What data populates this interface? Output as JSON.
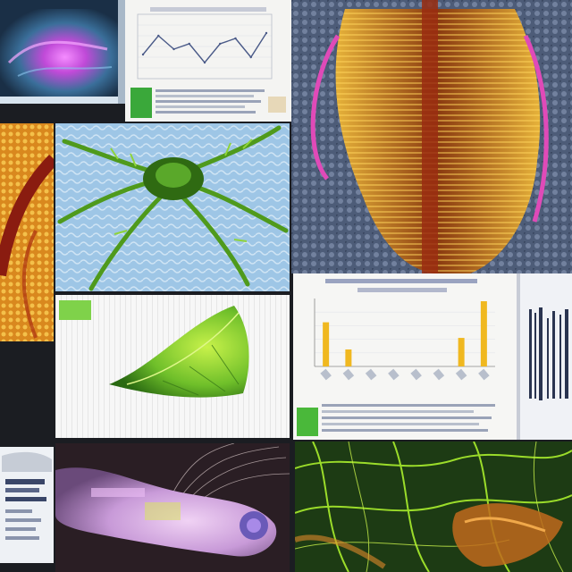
{
  "palette": {
    "blue_scan": "#2f7fb0",
    "magenta_glow": "#d04ad8",
    "gold_fiber": "#e0a62a",
    "deep_red": "#7a1d12",
    "leaf_green": "#6fbf2a",
    "lime": "#9bdc2a",
    "paper": "#f4f4f2",
    "chart_bar": "#f0b820",
    "chart_line": "#4a5a88",
    "lavender": "#c89ad8"
  },
  "tiles": [
    {
      "name": "scan-blue-magenta",
      "kind": "image"
    },
    {
      "name": "line-chart-sheet",
      "kind": "document"
    },
    {
      "name": "gold-fiber-torso",
      "kind": "image"
    },
    {
      "name": "orange-tissue-left",
      "kind": "image"
    },
    {
      "name": "green-sprout-on-blue",
      "kind": "image"
    },
    {
      "name": "green-leaf-on-grid",
      "kind": "image"
    },
    {
      "name": "bar-chart-sheet",
      "kind": "document"
    },
    {
      "name": "barcode-strip",
      "kind": "image"
    },
    {
      "name": "small-device-sheet",
      "kind": "image"
    },
    {
      "name": "lavender-creature",
      "kind": "image"
    },
    {
      "name": "green-vein-network",
      "kind": "image"
    }
  ],
  "chart_data": [
    {
      "type": "line",
      "x": [
        1,
        2,
        3,
        4,
        5,
        6,
        7,
        8,
        9
      ],
      "values": [
        0.35,
        0.7,
        0.45,
        0.55,
        0.2,
        0.55,
        0.65,
        0.3,
        0.75
      ],
      "title": "",
      "xlabel": "",
      "ylabel": ""
    },
    {
      "type": "bar",
      "categories": [
        "",
        "",
        "",
        "",
        "",
        "",
        "",
        ""
      ],
      "values": [
        0.65,
        0.25,
        0,
        0,
        0,
        0,
        0.42,
        0.96
      ],
      "title": "",
      "xlabel": "",
      "ylabel": ""
    }
  ]
}
